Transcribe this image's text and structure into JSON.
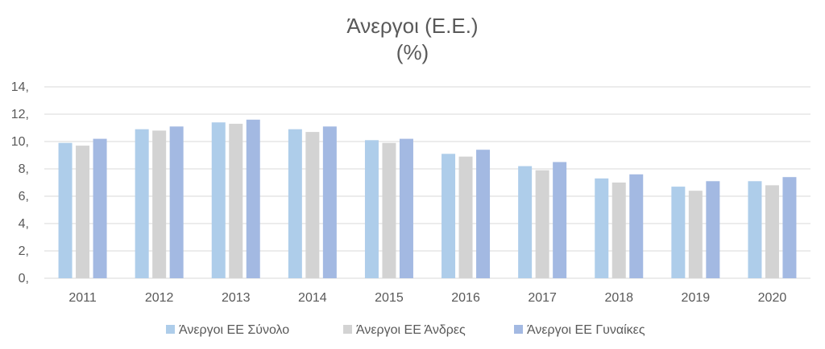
{
  "chart_data": {
    "type": "bar",
    "title": "Άνεργοι (Ε.Ε.)",
    "subtitle": "(%)",
    "xlabel": "",
    "ylabel": "",
    "categories": [
      "2011",
      "2012",
      "2013",
      "2014",
      "2015",
      "2016",
      "2017",
      "2018",
      "2019",
      "2020"
    ],
    "series": [
      {
        "name": "Άνεργοι ΕΕ Σύνολο",
        "color": "#aecdea",
        "values": [
          9.9,
          10.9,
          11.4,
          10.9,
          10.1,
          9.1,
          8.2,
          7.3,
          6.7,
          7.1
        ]
      },
      {
        "name": "Άνεργοι ΕΕ Άνδρες",
        "color": "#d3d3d3",
        "values": [
          9.7,
          10.8,
          11.3,
          10.7,
          9.9,
          8.9,
          7.9,
          7.0,
          6.4,
          6.8
        ]
      },
      {
        "name": "Άνεργοι ΕΕ Γυναίκες",
        "color": "#a3b9e2",
        "values": [
          10.2,
          11.1,
          11.6,
          11.1,
          10.2,
          9.4,
          8.5,
          7.6,
          7.1,
          7.4
        ]
      }
    ],
    "ylim": [
      0,
      14
    ],
    "yticks": [
      {
        "value": 0,
        "label": "0,"
      },
      {
        "value": 2,
        "label": "2,"
      },
      {
        "value": 4,
        "label": "4,"
      },
      {
        "value": 6,
        "label": "6,"
      },
      {
        "value": 8,
        "label": "8,"
      },
      {
        "value": 10,
        "label": "10,"
      },
      {
        "value": 12,
        "label": "12,"
      },
      {
        "value": 14,
        "label": "14,"
      }
    ],
    "grid": true,
    "gridColor": "#d9d9d9",
    "textColor": "#595959",
    "legend": "bottom"
  }
}
